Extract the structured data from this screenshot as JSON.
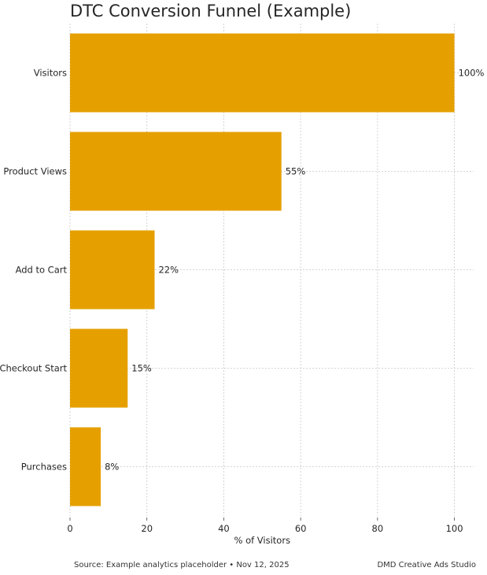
{
  "chart_data": {
    "type": "bar",
    "orientation": "horizontal",
    "title": "DTC Conversion Funnel (Example)",
    "categories": [
      "Visitors",
      "Product Views",
      "Add to Cart",
      "Checkout Start",
      "Purchases"
    ],
    "values": [
      100,
      55,
      22,
      15,
      8
    ],
    "data_labels": [
      "100%",
      "55%",
      "22%",
      "15%",
      "8%"
    ],
    "xlabel": "% of Visitors",
    "ylabel": "",
    "xlim": [
      0,
      105
    ],
    "xticks": [
      0,
      20,
      40,
      60,
      80,
      100
    ],
    "bar_color": "#E5A000",
    "grid": true,
    "legend": false
  },
  "footer": {
    "source": "Source: Example analytics placeholder • Nov 12, 2025",
    "brand": "DMD Creative Ads Studio"
  }
}
